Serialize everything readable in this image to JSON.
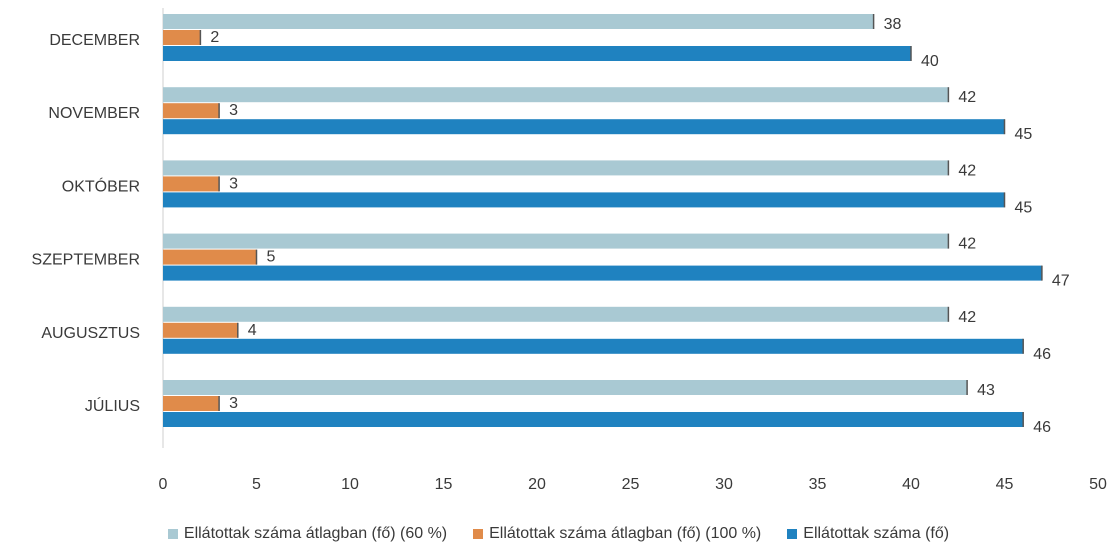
{
  "chart_data": {
    "type": "bar",
    "orientation": "horizontal",
    "categories": [
      "DECEMBER",
      "NOVEMBER",
      "OKTÓBER",
      "SZEPTEMBER",
      "AUGUSZTUS",
      "JÚLIUS"
    ],
    "series": [
      {
        "name": "Ellátottak száma átlagban (fő) (60 %)",
        "values": [
          38,
          42,
          42,
          42,
          42,
          43
        ],
        "color": "#a9c9d3"
      },
      {
        "name": "Ellátottak száma átlagban (fő) (100 %)",
        "values": [
          2,
          3,
          3,
          5,
          4,
          3
        ],
        "color": "#e08b4a"
      },
      {
        "name": "Ellátottak száma (fő)",
        "values": [
          40,
          45,
          45,
          47,
          46,
          46
        ],
        "color": "#1f82c0"
      }
    ],
    "xlim": [
      0,
      50
    ],
    "xticks": [
      "0",
      "5",
      "10",
      "15",
      "20",
      "25",
      "30",
      "35",
      "40",
      "45",
      "50"
    ],
    "title": "",
    "xlabel": "",
    "ylabel": "",
    "grid": false,
    "data_labels": true,
    "legend_position": "bottom"
  }
}
